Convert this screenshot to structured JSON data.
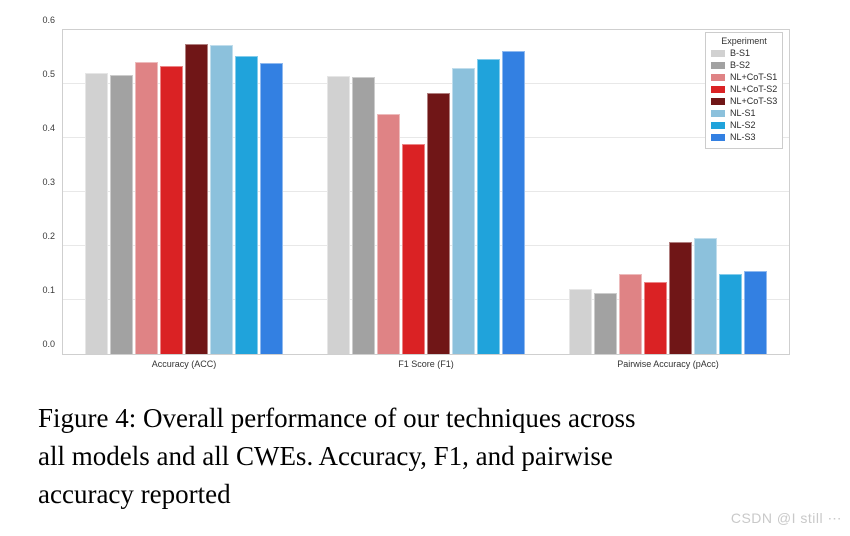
{
  "caption": {
    "lines": [
      "Figure 4: Overall performance of our techniques across",
      "all models and all CWEs. Accuracy, F1, and pairwise",
      "accuracy reported"
    ]
  },
  "watermark": "CSDN @I still ⋯",
  "chart_data": {
    "type": "bar",
    "title": "",
    "xlabel": "",
    "ylabel": "",
    "categories": [
      "Accuracy (ACC)",
      "F1 Score (F1)",
      "Pairwise Accuracy (pAcc)"
    ],
    "ylim": [
      0.0,
      0.6
    ],
    "yticks": [
      0.0,
      0.1,
      0.2,
      0.3,
      0.4,
      0.5,
      0.6
    ],
    "grid": "horizontal",
    "legend_title": "Experiment",
    "legend_position": "upper right",
    "series": [
      {
        "name": "B-S1",
        "color": "#d1d1d1",
        "values": [
          0.52,
          0.514,
          0.12
        ]
      },
      {
        "name": "B-S2",
        "color": "#a2a2a2",
        "values": [
          0.517,
          0.513,
          0.113
        ]
      },
      {
        "name": "NL+CoT-S1",
        "color": "#df8385",
        "values": [
          0.54,
          0.444,
          0.149
        ]
      },
      {
        "name": "NL+CoT-S2",
        "color": "#da2224",
        "values": [
          0.533,
          0.389,
          0.134
        ]
      },
      {
        "name": "NL+CoT-S3",
        "color": "#701617",
        "values": [
          0.575,
          0.484,
          0.208
        ]
      },
      {
        "name": "NL-S1",
        "color": "#8cc1dc",
        "values": [
          0.573,
          0.529,
          0.214
        ]
      },
      {
        "name": "NL-S2",
        "color": "#20a3db",
        "values": [
          0.552,
          0.547,
          0.149
        ]
      },
      {
        "name": "NL-S3",
        "color": "#3380e2",
        "values": [
          0.538,
          0.561,
          0.153
        ]
      }
    ]
  }
}
